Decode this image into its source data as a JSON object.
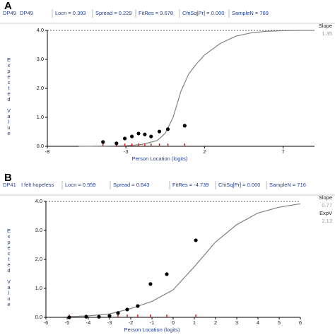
{
  "chart_data": [
    {
      "type": "line",
      "panel": "A",
      "header": [
        "DP49",
        "DP49",
        "Locn = 0.393",
        "Spread = 0.229",
        "FitRes = 9.678",
        "ChiSq[Pr] = 0.000",
        "SampleN = 769"
      ],
      "side": [
        "Slope",
        "1.35"
      ],
      "ylabel": "Expected Value",
      "xlabel": "Person Location (logits)",
      "xlim": [
        -8,
        9
      ],
      "ylim": [
        0,
        4
      ],
      "xticks": [
        -8,
        -3,
        2,
        7
      ],
      "yticks": [
        {
          "value": 0,
          "label": "0.0"
        },
        {
          "value": 1,
          "label": "1.0"
        },
        {
          "value": 2,
          "label": "2.0"
        },
        {
          "value": 3,
          "label": "3.0"
        },
        {
          "value": 4,
          "label": "4.0"
        }
      ],
      "curve": {
        "color": "#808080",
        "x": [
          -6,
          -4,
          -3,
          -2,
          -1,
          -0.5,
          0,
          0.5,
          1,
          1.5,
          2,
          3,
          4,
          5,
          6,
          7,
          8,
          9
        ],
        "values": [
          0,
          0.01,
          0.02,
          0.06,
          0.2,
          0.45,
          1.0,
          1.9,
          2.5,
          2.85,
          3.15,
          3.55,
          3.8,
          3.92,
          3.97,
          3.99,
          4.0,
          4.0
        ]
      },
      "points": {
        "color": "#000000",
        "tick_color": "#d62020",
        "x": [
          -4.46,
          -3.6,
          -3.07,
          -2.62,
          -2.2,
          -1.8,
          -1.4,
          -0.87,
          -0.33,
          0.74
        ],
        "values": [
          0.15,
          0.1,
          0.27,
          0.34,
          0.44,
          0.41,
          0.34,
          0.51,
          0.59,
          0.71
        ]
      }
    },
    {
      "type": "line",
      "panel": "B",
      "header": [
        "DP41",
        "I felt hopeless",
        "Locn = 0.559",
        "Spread = 0.643",
        "FitRes = -4.739",
        "ChiSq[Pr] = 0.000",
        "SampleN = 716"
      ],
      "side": [
        "Slope",
        "0.77",
        "ExpV",
        "2.13"
      ],
      "ylabel": "Expected Value",
      "xlabel": "Person Location (logits)",
      "xlim": [
        -6,
        6
      ],
      "ylim": [
        0,
        4
      ],
      "xticks": [
        -6,
        -5,
        -4,
        -3,
        -2,
        -1,
        0,
        1,
        2,
        3,
        4,
        5,
        6
      ],
      "yticks": [
        {
          "value": 0,
          "label": "0.0"
        },
        {
          "value": 1,
          "label": "1.0"
        },
        {
          "value": 2,
          "label": "2.0"
        },
        {
          "value": 3,
          "label": "3.0"
        },
        {
          "value": 4,
          "label": "4.0"
        }
      ],
      "curve": {
        "color": "#808080",
        "x": [
          -5,
          -4,
          -3,
          -2,
          -1,
          0,
          1,
          2,
          3,
          4,
          5,
          6
        ],
        "values": [
          0.02,
          0.05,
          0.12,
          0.3,
          0.55,
          0.95,
          1.75,
          2.6,
          3.2,
          3.6,
          3.8,
          3.92
        ]
      },
      "points": {
        "color": "#000000",
        "tick_color": "#d62020",
        "x": [
          -4.9,
          -4.1,
          -3.5,
          -3,
          -2.6,
          -2.17,
          -1.67,
          -1.07,
          -0.3,
          1.07
        ],
        "values": [
          0,
          0.02,
          0.02,
          0.05,
          0.15,
          0.27,
          0.39,
          1.15,
          1.49,
          2.66
        ]
      }
    }
  ]
}
